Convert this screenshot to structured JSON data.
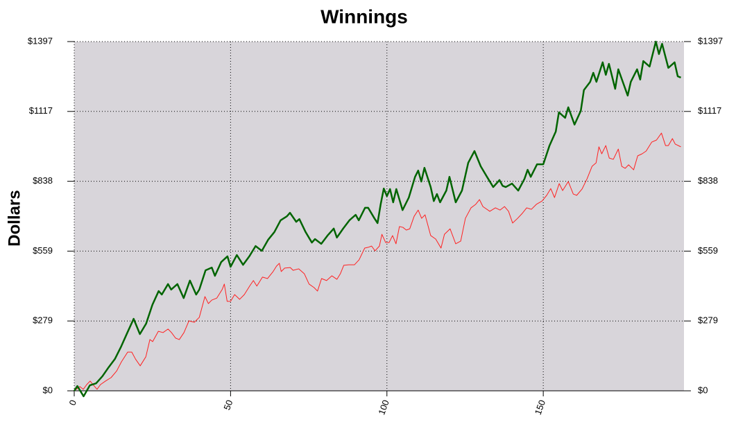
{
  "chart_data": {
    "type": "line",
    "title": "Winnings",
    "ylabel": "Dollars",
    "xlim": [
      0,
      195
    ],
    "xticks": [
      0,
      50,
      100,
      150
    ],
    "ylim": [
      0,
      1397
    ],
    "yticks": [
      {
        "value": 0,
        "label": "$0"
      },
      {
        "value": 279.4,
        "label": "$279"
      },
      {
        "value": 558.8,
        "label": "$559"
      },
      {
        "value": 838.2,
        "label": "$838"
      },
      {
        "value": 1117.6,
        "label": "$1117"
      },
      {
        "value": 1397,
        "label": "$1397"
      }
    ],
    "y2lim": [
      0,
      1397
    ],
    "y2ticks": [
      {
        "value": 0,
        "label": "$0"
      },
      {
        "value": 279.4,
        "label": "$279"
      },
      {
        "value": 558.8,
        "label": "$559"
      },
      {
        "value": 838.2,
        "label": "$838"
      },
      {
        "value": 1117.6,
        "label": "$1117"
      },
      {
        "value": 1397,
        "label": "$1397"
      }
    ],
    "grid": true,
    "series": [
      {
        "color": "#006400",
        "x": [
          0,
          1,
          3,
          5,
          7,
          9,
          11,
          13,
          15,
          17,
          19,
          21,
          23,
          25,
          27,
          28,
          30,
          31,
          33,
          35,
          37,
          39,
          40,
          42,
          44,
          45,
          47,
          49,
          50,
          52,
          54,
          56,
          58,
          60,
          62,
          64,
          66,
          68,
          69,
          71,
          72,
          74,
          76,
          77,
          79,
          81,
          83,
          84,
          86,
          88,
          90,
          91,
          93,
          94,
          96,
          97,
          98,
          99,
          100,
          101,
          102,
          103,
          105,
          107,
          109,
          110,
          111,
          112,
          114,
          115,
          116,
          117,
          119,
          120,
          122,
          124,
          126,
          128,
          130,
          132,
          134,
          136,
          137,
          138,
          140,
          142,
          144,
          145,
          146,
          148,
          150,
          152,
          154,
          155,
          157,
          158,
          160,
          162,
          163,
          165,
          166,
          167,
          169,
          170,
          171,
          173,
          174,
          177,
          178,
          180,
          181,
          182,
          184,
          186,
          187,
          188,
          190,
          192,
          193,
          194
        ],
        "values": [
          0,
          19,
          -22,
          22,
          30,
          58,
          94,
          127,
          177,
          233,
          288,
          227,
          269,
          344,
          399,
          385,
          427,
          405,
          427,
          371,
          441,
          385,
          405,
          482,
          493,
          460,
          515,
          538,
          496,
          543,
          504,
          538,
          579,
          560,
          604,
          635,
          682,
          698,
          712,
          676,
          687,
          635,
          593,
          607,
          588,
          621,
          649,
          613,
          649,
          682,
          704,
          682,
          732,
          732,
          690,
          671,
          746,
          809,
          779,
          807,
          754,
          807,
          723,
          773,
          856,
          881,
          837,
          892,
          815,
          759,
          787,
          754,
          801,
          856,
          754,
          801,
          912,
          959,
          898,
          856,
          815,
          843,
          820,
          815,
          829,
          801,
          848,
          884,
          856,
          906,
          906,
          981,
          1037,
          1114,
          1092,
          1134,
          1065,
          1120,
          1203,
          1236,
          1272,
          1236,
          1314,
          1264,
          1308,
          1208,
          1286,
          1181,
          1236,
          1286,
          1245,
          1319,
          1297,
          1397,
          1347,
          1388,
          1292,
          1314,
          1258,
          1253
        ]
      },
      {
        "color": "#ff2020",
        "x": [
          0,
          1.8,
          2.9,
          4,
          5.1,
          6.2,
          7.3,
          8.4,
          10,
          11.8,
          13.6,
          15.1,
          17.1,
          18.4,
          19.6,
          21.1,
          22.9,
          24.2,
          25.1,
          26.9,
          28.4,
          30,
          31.1,
          32.4,
          33.6,
          35.1,
          36.7,
          38.4,
          40,
          41.8,
          42.9,
          44,
          45.6,
          47.3,
          48,
          48.9,
          50,
          51.3,
          52.9,
          54.4,
          56.2,
          57.3,
          58.4,
          60.2,
          61.8,
          63.6,
          64.7,
          65.6,
          66.2,
          67.3,
          69.1,
          70,
          71.8,
          73.6,
          75.1,
          76.7,
          77.8,
          79.1,
          80.7,
          82.4,
          84,
          85.1,
          86.2,
          87.8,
          89.6,
          91.1,
          92.9,
          94,
          95.1,
          96.2,
          97.6,
          98.4,
          99.6,
          100.7,
          101.8,
          102.9,
          104,
          105.1,
          106.2,
          107.3,
          108.7,
          110,
          111.1,
          112.2,
          114,
          115.6,
          117.3,
          118.4,
          120.2,
          122,
          123.6,
          125.1,
          126.9,
          128.4,
          129.6,
          130.7,
          132.9,
          134.7,
          136.2,
          137.6,
          138.9,
          140.2,
          141.8,
          143.3,
          144.7,
          146.2,
          147.8,
          149.6,
          151.1,
          152.4,
          153.6,
          155.1,
          156.2,
          158,
          159.6,
          160.7,
          162.4,
          164,
          165.6,
          166.9,
          167.8,
          168.7,
          170,
          171.1,
          172.4,
          174,
          175.1,
          176.2,
          177.3,
          178.9,
          180.2,
          181.6,
          182.9,
          184.7,
          186.2,
          187.8,
          189.1,
          190,
          191.3,
          192.2,
          194
        ],
        "values": [
          0,
          17,
          6,
          25,
          39,
          22,
          6,
          25,
          39,
          53,
          80,
          116,
          155,
          155,
          127,
          100,
          136,
          205,
          197,
          238,
          233,
          247,
          233,
          211,
          205,
          233,
          280,
          274,
          294,
          377,
          349,
          363,
          371,
          405,
          427,
          358,
          358,
          385,
          366,
          385,
          421,
          441,
          419,
          455,
          449,
          477,
          499,
          510,
          477,
          491,
          493,
          482,
          488,
          468,
          427,
          413,
          399,
          449,
          441,
          460,
          446,
          468,
          502,
          504,
          504,
          524,
          571,
          574,
          579,
          560,
          579,
          626,
          593,
          593,
          621,
          588,
          657,
          654,
          643,
          648,
          698,
          723,
          690,
          704,
          621,
          607,
          571,
          626,
          648,
          588,
          599,
          690,
          732,
          746,
          765,
          737,
          718,
          732,
          723,
          737,
          718,
          671,
          690,
          710,
          732,
          726,
          746,
          759,
          782,
          809,
          773,
          829,
          801,
          837,
          787,
          782,
          807,
          848,
          898,
          912,
          976,
          948,
          981,
          931,
          926,
          967,
          898,
          890,
          904,
          884,
          940,
          948,
          959,
          995,
          1003,
          1031,
          981,
          981,
          1009,
          987,
          976
        ]
      }
    ]
  }
}
